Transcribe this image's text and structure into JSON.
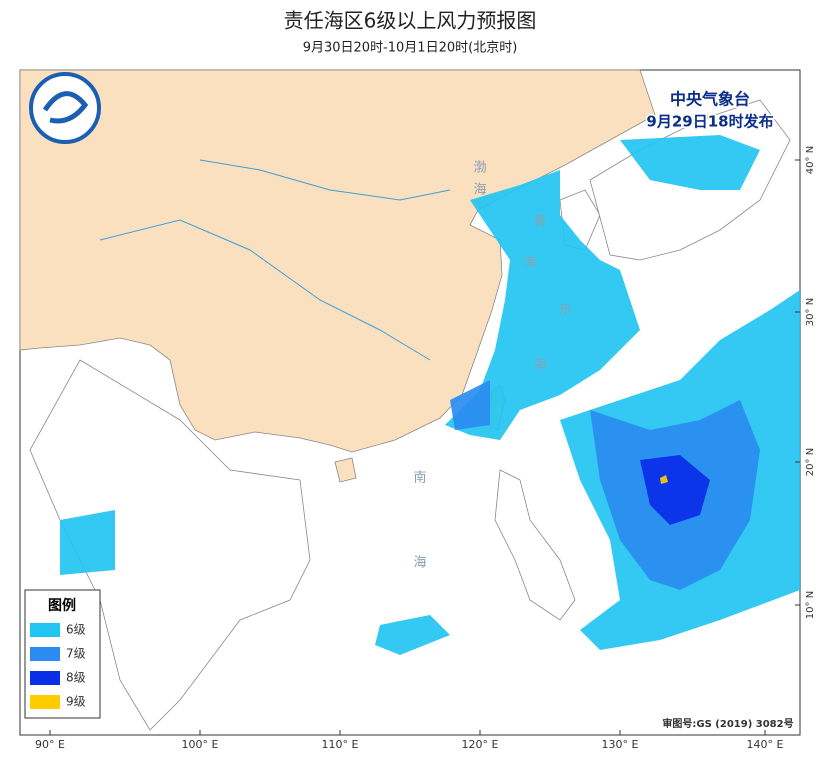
{
  "header": {
    "title": "责任海区6级以上风力预报图",
    "subtitle": "9月30日20时-10月1日20时(北京时)"
  },
  "issuer": {
    "name": "中央气象台",
    "time": "9月29日18时发布"
  },
  "legend": {
    "title": "图例",
    "items": [
      {
        "label": "6级",
        "color": "#22c4f2"
      },
      {
        "label": "7级",
        "color": "#2a8cf0"
      },
      {
        "label": "8级",
        "color": "#0a2ee8"
      },
      {
        "label": "9级",
        "color": "#ffcc00"
      }
    ]
  },
  "lon_labels": [
    "90° E",
    "100° E",
    "110° E",
    "120° E",
    "130° E",
    "140° E"
  ],
  "lat_labels": [
    "40° N",
    "30° N",
    "20° N",
    "10° N"
  ],
  "sea_labels": [
    "渤",
    "海",
    "黄",
    "海",
    "东",
    "海",
    "南",
    "海"
  ],
  "footer": {
    "approval": "审图号:GS (2019) 3082号"
  }
}
